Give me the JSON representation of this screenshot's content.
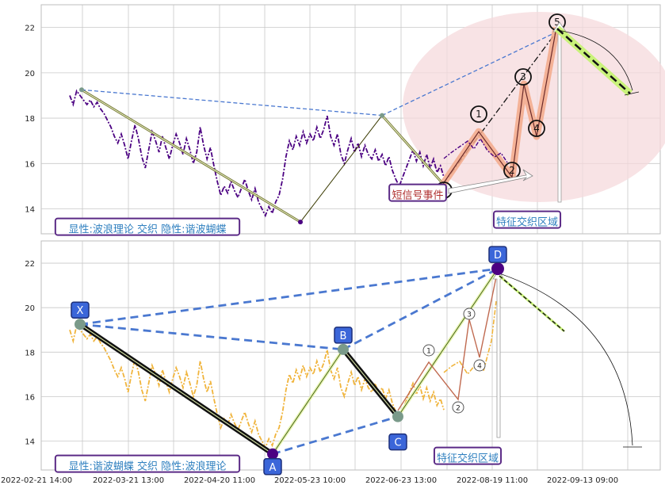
{
  "chart_data": [
    {
      "type": "line",
      "panel": "top",
      "ylim": [
        12.9,
        23.0
      ],
      "yticks": [
        14,
        16,
        18,
        20,
        22
      ],
      "grid": true,
      "series": [
        {
          "values": [
            19.0,
            18.6,
            19.2,
            19.0,
            18.8,
            18.6,
            18.8,
            18.5,
            18.7,
            18.4,
            18.2,
            17.9,
            17.6,
            17.2,
            16.9,
            17.3,
            16.8,
            16.2,
            17.0,
            17.7,
            17.1,
            16.3,
            15.8,
            16.6,
            17.4,
            17.0,
            16.5,
            17.2,
            16.7,
            16.2,
            16.8,
            17.3,
            16.9,
            16.4,
            17.1,
            16.6,
            16.0,
            16.5,
            17.6,
            16.8,
            16.2,
            16.7,
            15.9,
            15.2,
            14.6,
            15.0,
            14.7,
            15.2,
            14.8,
            14.5,
            14.9,
            15.3,
            14.8,
            14.4,
            14.9,
            14.3,
            14.0,
            13.7,
            14.1,
            13.8,
            14.3,
            14.6,
            15.3,
            16.3,
            17.0,
            16.6,
            17.2,
            16.8,
            17.4,
            16.9,
            17.3,
            17.0,
            17.6,
            17.1,
            17.5,
            18.1,
            17.2,
            16.8,
            17.3,
            16.4,
            16.0,
            16.6,
            17.1,
            16.5,
            16.9,
            16.3,
            16.8,
            16.4,
            16.2,
            16.6,
            16.1,
            16.4,
            15.9,
            16.3,
            15.7,
            15.3,
            15.0,
            15.4,
            15.8,
            16.2,
            16.6,
            16.1,
            16.5,
            15.9,
            16.4,
            15.8,
            16.2,
            15.6,
            15.9,
            15.4
          ]
        }
      ],
      "lines": [
        {
          "x": [
            0,
            0.38
          ],
          "y": [
            19.25,
            13.42
          ],
          "style": "solid-olive"
        },
        {
          "x": [
            0.38,
            0.58
          ],
          "y": [
            13.42,
            18.12
          ],
          "style": "solid-thin"
        },
        {
          "x": [
            0.58,
            0.68
          ],
          "y": [
            18.12,
            15.1
          ],
          "style": "solid-olive"
        },
        {
          "x": [
            0,
            0.58
          ],
          "y": [
            19.25,
            18.12
          ],
          "style": "dashed-blue"
        },
        {
          "x": [
            0.58,
            0.85
          ],
          "y": [
            18.12,
            21.8
          ],
          "style": "dashed-blue"
        },
        {
          "x": [
            0.68,
            0.85
          ],
          "y": [
            15.1,
            21.8
          ],
          "style": "dashdot-black"
        }
      ],
      "wave": {
        "x": [
          0.68,
          0.735,
          0.785,
          0.805,
          0.825,
          0.85
        ],
        "y": [
          15.1,
          17.4,
          15.4,
          19.5,
          17.2,
          22.0
        ],
        "labels": [
          "",
          "1",
          "2",
          "3",
          "4",
          "5"
        ]
      },
      "annotations": {
        "legend_box": "显性:波浪理论 交织 隐性:谐波蝴蝶",
        "event_box": "短信号事件",
        "region_label": "特征交织区域"
      }
    },
    {
      "type": "line",
      "panel": "bottom",
      "ylim": [
        12.7,
        23.0
      ],
      "yticks": [
        14,
        16,
        18,
        20,
        22
      ],
      "grid": true,
      "series": [
        {
          "values": [
            19.0,
            18.5,
            19.2,
            19.0,
            18.8,
            18.6,
            18.8,
            18.5,
            18.7,
            18.4,
            18.2,
            17.9,
            17.6,
            17.2,
            16.9,
            17.3,
            16.8,
            16.2,
            17.0,
            17.7,
            17.1,
            16.3,
            15.8,
            16.6,
            17.4,
            17.0,
            16.5,
            17.2,
            16.7,
            16.2,
            16.8,
            17.3,
            16.9,
            16.4,
            17.1,
            16.6,
            16.0,
            16.5,
            17.6,
            16.8,
            16.2,
            16.7,
            15.9,
            15.2,
            14.6,
            15.0,
            14.7,
            15.2,
            14.8,
            14.5,
            14.9,
            15.3,
            14.8,
            14.4,
            14.9,
            14.3,
            14.0,
            13.7,
            14.1,
            13.8,
            14.3,
            14.6,
            15.3,
            16.3,
            17.0,
            16.6,
            17.2,
            16.8,
            17.4,
            16.9,
            17.3,
            17.0,
            17.6,
            17.1,
            17.5,
            18.1,
            17.2,
            16.8,
            17.3,
            16.4,
            16.0,
            16.6,
            17.1,
            16.5,
            16.9,
            16.3,
            16.8,
            16.4,
            16.2,
            16.6,
            16.1,
            16.4,
            15.9,
            16.3,
            15.7,
            15.3,
            15.0,
            15.4,
            15.8,
            16.2,
            16.6,
            16.1,
            16.5,
            15.9,
            16.4,
            15.8,
            16.2,
            15.6,
            15.9,
            15.4
          ]
        }
      ],
      "points": [
        {
          "label": "X",
          "x": 0.0,
          "y": 19.25
        },
        {
          "label": "A",
          "x": 0.32,
          "y": 13.42
        },
        {
          "label": "B",
          "x": 0.45,
          "y": 18.12
        },
        {
          "label": "C",
          "x": 0.52,
          "y": 15.1
        },
        {
          "label": "D",
          "x": 0.66,
          "y": 21.75
        }
      ],
      "wave_labels": [
        "1",
        "2",
        "3",
        "4"
      ],
      "annotations": {
        "legend_box": "显性:谐波蝴蝶 交织 隐性:波浪理论",
        "region_label": "特征交织区域"
      }
    }
  ],
  "x_axis": {
    "tick_labels": [
      "2022-02-21 14:00",
      "2022-03-21 13:00",
      "2022-04-20 11:00",
      "2022-05-23 10:00",
      "2022-06-23 13:00",
      "2022-08-19 11:00",
      "2022-09-13 09:00"
    ]
  },
  "colors": {
    "price_top": "#4b0082",
    "price_bottom": "#f0b43c",
    "harmonic_blue": "#4a78d0",
    "wave_orange": "#f3a98a",
    "ellipse_pink": "#f6d9dc",
    "box_border": "#5b2a86",
    "box_text": "#2e7fbf",
    "grid": "#c8c8c8"
  }
}
